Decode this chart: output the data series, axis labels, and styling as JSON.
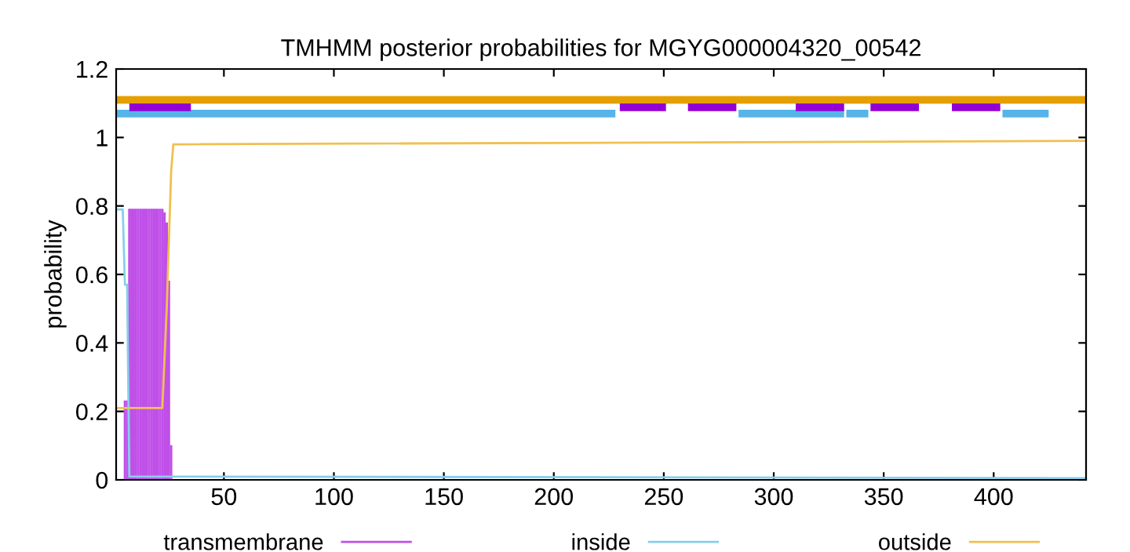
{
  "chart_data": {
    "type": "line",
    "title": "TMHMM posterior probabilities for MGYG000004320_00542",
    "ylabel": "probability",
    "xlim": [
      1,
      442
    ],
    "ylim": [
      0,
      1.2
    ],
    "xticks": [
      50,
      100,
      150,
      200,
      250,
      300,
      350,
      400
    ],
    "yticks": [
      0,
      0.2,
      0.4,
      0.6,
      0.8,
      1,
      1.2
    ],
    "legend": "bottom",
    "grid": false,
    "series": [
      {
        "name": "transmembrane",
        "type": "bar",
        "color": "#c050e8",
        "x": [
          5,
          6,
          7,
          8,
          9,
          10,
          11,
          12,
          13,
          14,
          15,
          16,
          17,
          18,
          19,
          20,
          21,
          22,
          23,
          24,
          25,
          26
        ],
        "values": [
          0.23,
          0.23,
          0.79,
          0.79,
          0.79,
          0.79,
          0.79,
          0.79,
          0.79,
          0.79,
          0.79,
          0.79,
          0.79,
          0.79,
          0.79,
          0.79,
          0.79,
          0.79,
          0.78,
          0.75,
          0.58,
          0.1
        ]
      },
      {
        "name": "inside",
        "color": "#87ceeb",
        "x": [
          1,
          4,
          5,
          6,
          7,
          442
        ],
        "values": [
          0.79,
          0.79,
          0.57,
          0.57,
          0.01,
          0.005
        ]
      },
      {
        "name": "outside",
        "color": "#f0c050",
        "x": [
          1,
          22,
          24,
          26,
          27,
          442
        ],
        "values": [
          0.21,
          0.21,
          0.5,
          0.9,
          0.98,
          0.99
        ]
      },
      {
        "color": "#e69f00",
        "x": [
          1,
          442
        ],
        "values": [
          1.11,
          1.11
        ]
      },
      {
        "color": "#56b4e9",
        "x": [
          1,
          228,
          256,
          284,
          332,
          332.5,
          333,
          343,
          373,
          404,
          425
        ],
        "values": [
          1.07,
          1.07,
          null,
          1.07,
          1.07,
          null,
          1.07,
          1.07,
          null,
          1.07,
          1.07
        ]
      },
      {
        "color": "#9400d3",
        "x": [
          7,
          35,
          130,
          230,
          251,
          256,
          261,
          283,
          296,
          310,
          332,
          338,
          344,
          366,
          373,
          381,
          403
        ],
        "values": [
          1.088,
          1.088,
          null,
          1.088,
          1.088,
          null,
          1.088,
          1.088,
          null,
          1.088,
          1.088,
          null,
          1.088,
          1.088,
          null,
          1.088,
          1.088
        ]
      }
    ]
  }
}
